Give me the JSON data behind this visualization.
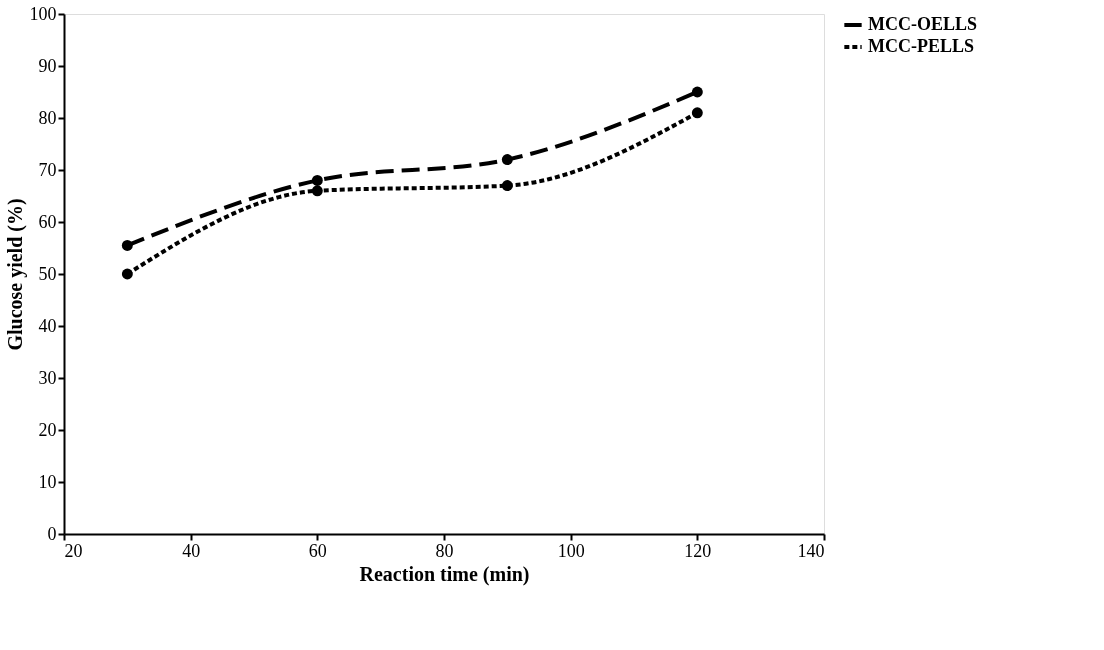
{
  "chart_data": {
    "type": "line",
    "xlabel": "Reaction  time (min)",
    "ylabel": "Glucose  yield (%)",
    "x": [
      30,
      60,
      90,
      120
    ],
    "series": [
      {
        "name": "MCC-OELLS",
        "color": "#000000",
        "values": [
          55.5,
          68,
          72,
          85
        ],
        "line_style": "dashed"
      },
      {
        "name": "MCC-PELLS",
        "color": "#000000",
        "values": [
          50,
          66,
          67,
          81
        ],
        "line_style": "dotted"
      }
    ],
    "xlim": [
      20,
      140
    ],
    "xticks": [
      20,
      40,
      60,
      80,
      100,
      120,
      140
    ],
    "ylim": [
      0,
      100
    ],
    "yticks": [
      0,
      10,
      20,
      30,
      40,
      50,
      60,
      70,
      80,
      90,
      100
    ],
    "grid": false,
    "legend": "right",
    "marker": "circle"
  }
}
